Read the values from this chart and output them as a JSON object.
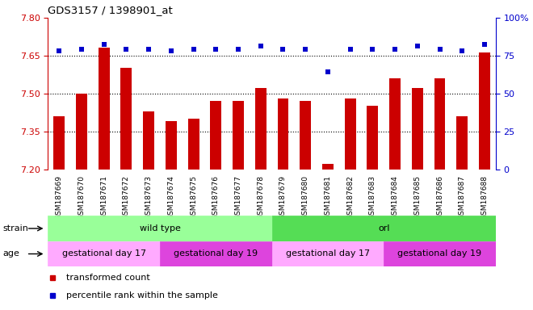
{
  "title": "GDS3157 / 1398901_at",
  "samples": [
    "GSM187669",
    "GSM187670",
    "GSM187671",
    "GSM187672",
    "GSM187673",
    "GSM187674",
    "GSM187675",
    "GSM187676",
    "GSM187677",
    "GSM187678",
    "GSM187679",
    "GSM187680",
    "GSM187681",
    "GSM187682",
    "GSM187683",
    "GSM187684",
    "GSM187685",
    "GSM187686",
    "GSM187687",
    "GSM187688"
  ],
  "bar_values": [
    7.41,
    7.5,
    7.68,
    7.6,
    7.43,
    7.39,
    7.4,
    7.47,
    7.47,
    7.52,
    7.48,
    7.47,
    7.22,
    7.48,
    7.45,
    7.56,
    7.52,
    7.56,
    7.41,
    7.66
  ],
  "percentile_values": [
    78,
    79,
    82,
    79,
    79,
    78,
    79,
    79,
    79,
    81,
    79,
    79,
    64,
    79,
    79,
    79,
    81,
    79,
    78,
    82
  ],
  "bar_color": "#cc0000",
  "percentile_color": "#0000cc",
  "ylim_left": [
    7.2,
    7.8
  ],
  "ylim_right": [
    0,
    100
  ],
  "yticks_left": [
    7.2,
    7.35,
    7.5,
    7.65,
    7.8
  ],
  "yticks_right": [
    0,
    25,
    50,
    75,
    100
  ],
  "hlines": [
    7.35,
    7.5,
    7.65
  ],
  "strain_groups": [
    {
      "label": "wild type",
      "start": 0,
      "end": 10,
      "color": "#99ff99"
    },
    {
      "label": "orl",
      "start": 10,
      "end": 20,
      "color": "#55dd55"
    }
  ],
  "age_groups": [
    {
      "label": "gestational day 17",
      "start": 0,
      "end": 5,
      "color": "#ffaaff"
    },
    {
      "label": "gestational day 19",
      "start": 5,
      "end": 10,
      "color": "#dd44dd"
    },
    {
      "label": "gestational day 17",
      "start": 10,
      "end": 15,
      "color": "#ffaaff"
    },
    {
      "label": "gestational day 19",
      "start": 15,
      "end": 20,
      "color": "#dd44dd"
    }
  ],
  "legend_items": [
    {
      "label": "transformed count",
      "color": "#cc0000"
    },
    {
      "label": "percentile rank within the sample",
      "color": "#0000cc"
    }
  ],
  "background_color": "#ffffff"
}
